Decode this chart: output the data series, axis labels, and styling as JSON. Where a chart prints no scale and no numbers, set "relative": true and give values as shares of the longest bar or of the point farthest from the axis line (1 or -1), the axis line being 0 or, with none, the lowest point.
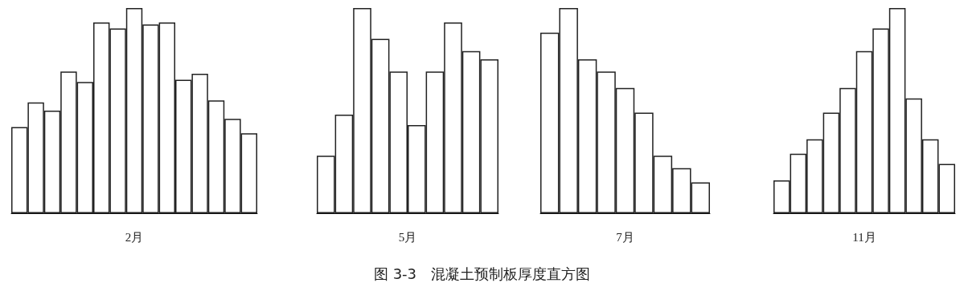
{
  "chart_data": [
    {
      "type": "bar",
      "relative": true,
      "xlabel": "2月",
      "categories": [
        null,
        null,
        null,
        null,
        null,
        null,
        null,
        null,
        null,
        null,
        null,
        null,
        null,
        null,
        null
      ],
      "series": [
        {
          "color": "#ffffff",
          "values": [
            0.42,
            0.54,
            0.5,
            0.69,
            0.64,
            0.93,
            0.9,
            1,
            0.92,
            0.93,
            0.65,
            0.68,
            0.55,
            0.46,
            0.39
          ]
        }
      ],
      "annotations": [
        "图 3-3　混凝土预制板厚度直方图"
      ]
    },
    {
      "type": "bar",
      "relative": true,
      "xlabel": "5月",
      "categories": [
        null,
        null,
        null,
        null,
        null,
        null,
        null,
        null,
        null,
        null
      ],
      "series": [
        {
          "color": "#ffffff",
          "values": [
            0.28,
            0.48,
            1,
            0.85,
            0.69,
            0.43,
            0.69,
            0.93,
            0.79,
            0.75
          ]
        }
      ]
    },
    {
      "type": "bar",
      "relative": true,
      "xlabel": "7月",
      "categories": [
        null,
        null,
        null,
        null,
        null,
        null,
        null,
        null,
        null
      ],
      "series": [
        {
          "color": "#ffffff",
          "values": [
            0.88,
            1,
            0.75,
            0.69,
            0.61,
            0.49,
            0.28,
            0.22,
            0.15
          ]
        }
      ]
    },
    {
      "type": "bar",
      "relative": true,
      "xlabel": "11月",
      "categories": [
        null,
        null,
        null,
        null,
        null,
        null,
        null,
        null,
        null,
        null,
        null
      ],
      "series": [
        {
          "color": "#ffffff",
          "values": [
            0.16,
            0.29,
            0.36,
            0.49,
            0.61,
            0.79,
            0.9,
            1,
            0.56,
            0.36,
            0.24
          ]
        }
      ]
    }
  ]
}
